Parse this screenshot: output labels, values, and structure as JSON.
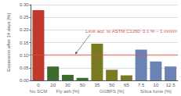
{
  "chart_data": {
    "type": "bar",
    "categories": [
      "0",
      "20",
      "30",
      "50",
      "35",
      "50",
      "65",
      "7.5",
      "10",
      "12.5"
    ],
    "series": [
      {
        "name": "No SCM",
        "color": "#c0392b",
        "values": [
          0.278,
          null,
          null,
          null,
          null,
          null,
          null,
          null,
          null,
          null
        ]
      },
      {
        "name": "Fly ash [%]",
        "color": "#3d6b2e",
        "values": [
          null,
          0.055,
          0.022,
          0.01,
          null,
          null,
          null,
          null,
          null,
          null
        ]
      },
      {
        "name": "GGBFS [%]",
        "color": "#7a7a20",
        "values": [
          null,
          null,
          null,
          null,
          0.145,
          0.042,
          0.02,
          null,
          null,
          null
        ]
      },
      {
        "name": "Silica fume [%]",
        "color": "#6b82b5",
        "values": [
          null,
          null,
          null,
          null,
          null,
          null,
          null,
          0.122,
          0.075,
          0.055
        ]
      }
    ],
    "ylabel": "Expansion after 14 days [%]",
    "ylim": [
      0,
      0.3
    ],
    "yticks": [
      {
        "value": 0.0,
        "label": "0.00"
      },
      {
        "value": 0.05,
        "label": "0.05"
      },
      {
        "value": 0.1,
        "label": "0.10"
      },
      {
        "value": 0.15,
        "label": "0.15"
      },
      {
        "value": 0.2,
        "label": "0.20"
      },
      {
        "value": 0.25,
        "label": "0.25"
      },
      {
        "value": 0.3,
        "label": "0.30"
      }
    ],
    "grid": true,
    "limit": {
      "value": 0.1,
      "band": [
        0.094,
        0.106
      ],
      "label": "Limit acc. to ASTM C1260: 0.1 % – 1 mm/m",
      "color": "#d9534f",
      "band_color": "#f5c0b0"
    }
  }
}
